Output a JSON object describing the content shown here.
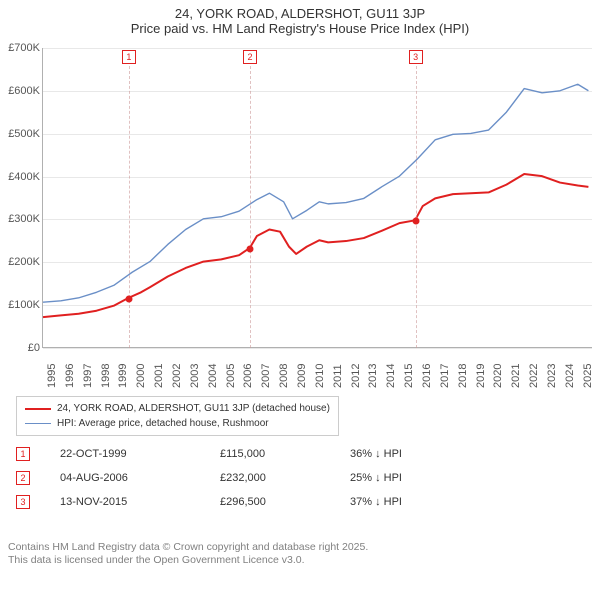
{
  "title": {
    "line1": "24, YORK ROAD, ALDERSHOT, GU11 3JP",
    "line2": "Price paid vs. HM Land Registry's House Price Index (HPI)"
  },
  "chart": {
    "type": "line",
    "background_color": "#ffffff",
    "grid_color": "#e8e8e8",
    "axis_color": "#b0b0b0",
    "x": {
      "min": 1995,
      "max": 2025.8,
      "ticks": [
        1995,
        1996,
        1997,
        1998,
        1999,
        2000,
        2001,
        2002,
        2003,
        2004,
        2005,
        2006,
        2007,
        2008,
        2009,
        2010,
        2011,
        2012,
        2013,
        2014,
        2015,
        2016,
        2017,
        2018,
        2019,
        2020,
        2021,
        2022,
        2023,
        2024,
        2025
      ],
      "label_fontsize": 11
    },
    "y": {
      "min": 0,
      "max": 700000,
      "ticks": [
        0,
        100000,
        200000,
        300000,
        400000,
        500000,
        600000,
        700000
      ],
      "tick_labels": [
        "£0",
        "£100K",
        "£200K",
        "£300K",
        "£400K",
        "£500K",
        "£600K",
        "£700K"
      ],
      "label_fontsize": 11
    },
    "series": [
      {
        "id": "property",
        "label": "24, YORK ROAD, ALDERSHOT, GU11 3JP (detached house)",
        "color": "#e02020",
        "line_width": 2,
        "points": [
          [
            1995.0,
            70000
          ],
          [
            1996.0,
            74000
          ],
          [
            1997.0,
            78000
          ],
          [
            1998.0,
            85000
          ],
          [
            1999.0,
            97000
          ],
          [
            1999.8,
            115000
          ],
          [
            2000.5,
            128000
          ],
          [
            2001.0,
            140000
          ],
          [
            2002.0,
            165000
          ],
          [
            2003.0,
            185000
          ],
          [
            2004.0,
            200000
          ],
          [
            2005.0,
            205000
          ],
          [
            2006.0,
            215000
          ],
          [
            2006.6,
            232000
          ],
          [
            2007.0,
            260000
          ],
          [
            2007.7,
            275000
          ],
          [
            2008.3,
            270000
          ],
          [
            2008.8,
            235000
          ],
          [
            2009.2,
            218000
          ],
          [
            2009.8,
            235000
          ],
          [
            2010.5,
            250000
          ],
          [
            2011.0,
            245000
          ],
          [
            2012.0,
            248000
          ],
          [
            2013.0,
            255000
          ],
          [
            2014.0,
            272000
          ],
          [
            2015.0,
            290000
          ],
          [
            2015.87,
            296500
          ],
          [
            2016.3,
            330000
          ],
          [
            2017.0,
            348000
          ],
          [
            2018.0,
            358000
          ],
          [
            2019.0,
            360000
          ],
          [
            2020.0,
            362000
          ],
          [
            2021.0,
            380000
          ],
          [
            2022.0,
            405000
          ],
          [
            2023.0,
            400000
          ],
          [
            2024.0,
            385000
          ],
          [
            2025.0,
            378000
          ],
          [
            2025.6,
            375000
          ]
        ]
      },
      {
        "id": "hpi",
        "label": "HPI: Average price, detached house, Rushmoor",
        "color": "#6a8fc7",
        "line_width": 1.4,
        "points": [
          [
            1995.0,
            105000
          ],
          [
            1996.0,
            108000
          ],
          [
            1997.0,
            115000
          ],
          [
            1998.0,
            128000
          ],
          [
            1999.0,
            145000
          ],
          [
            2000.0,
            175000
          ],
          [
            2001.0,
            200000
          ],
          [
            2002.0,
            240000
          ],
          [
            2003.0,
            275000
          ],
          [
            2004.0,
            300000
          ],
          [
            2005.0,
            305000
          ],
          [
            2006.0,
            318000
          ],
          [
            2007.0,
            345000
          ],
          [
            2007.7,
            360000
          ],
          [
            2008.5,
            340000
          ],
          [
            2009.0,
            300000
          ],
          [
            2009.8,
            320000
          ],
          [
            2010.5,
            340000
          ],
          [
            2011.0,
            335000
          ],
          [
            2012.0,
            338000
          ],
          [
            2013.0,
            348000
          ],
          [
            2014.0,
            375000
          ],
          [
            2015.0,
            400000
          ],
          [
            2016.0,
            440000
          ],
          [
            2017.0,
            485000
          ],
          [
            2018.0,
            498000
          ],
          [
            2019.0,
            500000
          ],
          [
            2020.0,
            508000
          ],
          [
            2021.0,
            550000
          ],
          [
            2022.0,
            605000
          ],
          [
            2023.0,
            595000
          ],
          [
            2024.0,
            600000
          ],
          [
            2025.0,
            615000
          ],
          [
            2025.6,
            600000
          ]
        ]
      }
    ],
    "sale_markers": [
      {
        "n": "1",
        "year": 1999.81,
        "price": 115000
      },
      {
        "n": "2",
        "year": 2006.59,
        "price": 232000
      },
      {
        "n": "3",
        "year": 2015.87,
        "price": 296500
      }
    ],
    "marker_style": {
      "border_color": "#e02020",
      "text_color": "#e02020",
      "dash_color": "#cc9999",
      "dot_color": "#e02020"
    }
  },
  "legend": {
    "items": [
      {
        "color": "#e02020",
        "thickness": 2,
        "label": "24, YORK ROAD, ALDERSHOT, GU11 3JP (detached house)"
      },
      {
        "color": "#6a8fc7",
        "thickness": 1.4,
        "label": "HPI: Average price, detached house, Rushmoor"
      }
    ]
  },
  "sales_table": {
    "rows": [
      {
        "n": "1",
        "date": "22-OCT-1999",
        "price": "£115,000",
        "delta": "36% ↓ HPI"
      },
      {
        "n": "2",
        "date": "04-AUG-2006",
        "price": "£232,000",
        "delta": "25% ↓ HPI"
      },
      {
        "n": "3",
        "date": "13-NOV-2015",
        "price": "£296,500",
        "delta": "37% ↓ HPI"
      }
    ]
  },
  "footer": {
    "line1": "Contains HM Land Registry data © Crown copyright and database right 2025.",
    "line2": "This data is licensed under the Open Government Licence v3.0."
  }
}
